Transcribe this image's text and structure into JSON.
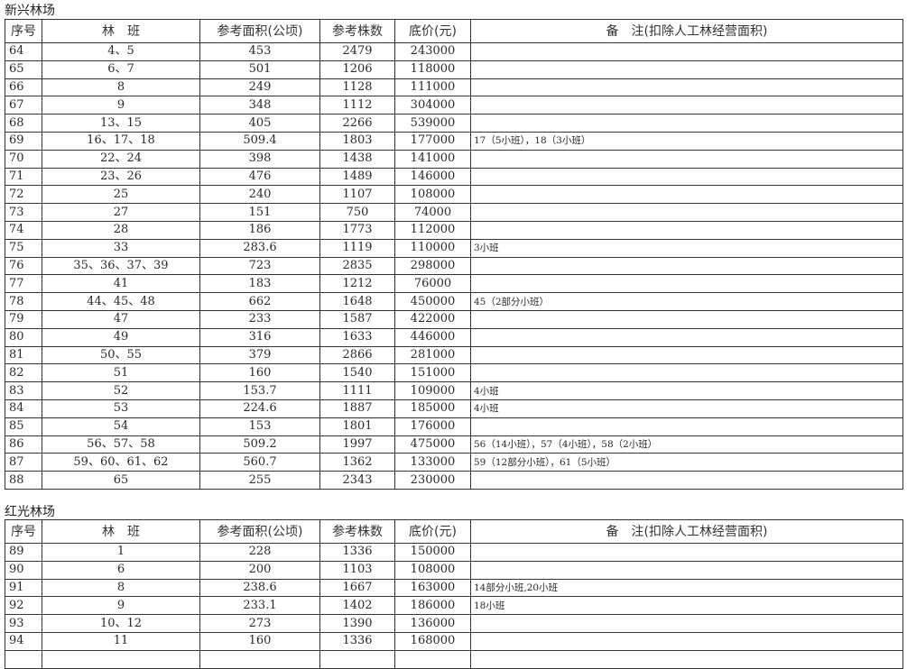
{
  "headers": [
    "序号",
    "林　班",
    "参考面积(公顷)",
    "参考株数",
    "底价(元)",
    "备　注(扣除人工林经营面积)"
  ],
  "sections": [
    {
      "title": "新兴林场",
      "rows": [
        [
          "64",
          "4、5",
          "453",
          "2479",
          "243000",
          ""
        ],
        [
          "65",
          "6、7",
          "501",
          "1206",
          "118000",
          ""
        ],
        [
          "66",
          "8",
          "249",
          "1128",
          "111000",
          ""
        ],
        [
          "67",
          "9",
          "348",
          "1112",
          "304000",
          ""
        ],
        [
          "68",
          "13、15",
          "405",
          "2266",
          "539000",
          ""
        ],
        [
          "69",
          "16、17、18",
          "509.4",
          "1803",
          "177000",
          "17（5小班），18（3小班）"
        ],
        [
          "70",
          "22、24",
          "398",
          "1438",
          "141000",
          ""
        ],
        [
          "71",
          "23、26",
          "476",
          "1489",
          "146000",
          ""
        ],
        [
          "72",
          "25",
          "240",
          "1107",
          "108000",
          ""
        ],
        [
          "73",
          "27",
          "151",
          "750",
          "74000",
          ""
        ],
        [
          "74",
          "28",
          "186",
          "1773",
          "112000",
          ""
        ],
        [
          "75",
          "33",
          "283.6",
          "1119",
          "110000",
          "3小班"
        ],
        [
          "76",
          "35、36、37、39",
          "723",
          "2835",
          "298000",
          ""
        ],
        [
          "77",
          "41",
          "183",
          "1212",
          "76000",
          ""
        ],
        [
          "78",
          "44、45、48",
          "662",
          "1648",
          "450000",
          "45（2部分小班）"
        ],
        [
          "79",
          "47",
          "233",
          "1587",
          "422000",
          ""
        ],
        [
          "80",
          "49",
          "316",
          "1633",
          "446000",
          ""
        ],
        [
          "81",
          "50、55",
          "379",
          "2866",
          "281000",
          ""
        ],
        [
          "82",
          "51",
          "160",
          "1540",
          "151000",
          ""
        ],
        [
          "83",
          "52",
          "153.7",
          "1111",
          "109000",
          "4小班"
        ],
        [
          "84",
          "53",
          "224.6",
          "1887",
          "185000",
          "4小班"
        ],
        [
          "85",
          "54",
          "153",
          "1801",
          "176000",
          ""
        ],
        [
          "86",
          "56、57、58",
          "509.2",
          "1997",
          "475000",
          "56（14小班），57（4小班），58（2小班）"
        ],
        [
          "87",
          "59、60、61、62",
          "560.7",
          "1362",
          "133000",
          "59（12部分小班），61（5小班）"
        ],
        [
          "88",
          "65",
          "255",
          "2343",
          "230000",
          ""
        ]
      ]
    },
    {
      "title": "红光林场",
      "rows": [
        [
          "89",
          "1",
          "228",
          "1336",
          "150000",
          ""
        ],
        [
          "90",
          "6",
          "200",
          "1103",
          "108000",
          ""
        ],
        [
          "91",
          "8",
          "238.6",
          "1667",
          "163000",
          "14部分小班,20小班"
        ],
        [
          "92",
          "9",
          "233.1",
          "1402",
          "186000",
          "18小班"
        ],
        [
          "93",
          "10、12",
          "273",
          "1390",
          "136000",
          ""
        ],
        [
          "94",
          "11",
          "160",
          "1336",
          "168000",
          ""
        ],
        [
          "",
          "",
          "",
          "",
          "",
          ""
        ]
      ]
    }
  ]
}
